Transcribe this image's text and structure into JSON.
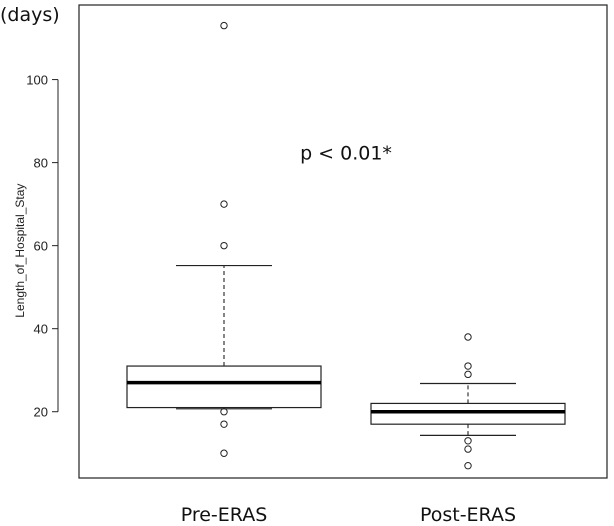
{
  "chart_data": {
    "type": "boxplot",
    "unit_label": "(days)",
    "ylabel": "Length_of_Hospital_Stay",
    "xlabel": "",
    "ylim": [
      5,
      117
    ],
    "yticks": [
      20,
      40,
      60,
      80,
      100
    ],
    "ytick_labels": [
      "20",
      "40",
      "60",
      "80",
      "100"
    ],
    "grid": false,
    "annotation": "p < 0.01*",
    "annotation_x": 1.5,
    "annotation_y": 80,
    "categories": [
      "Pre-ERAS",
      "Post-ERAS"
    ],
    "boxes": [
      {
        "category": "Pre-ERAS",
        "whisker_low": 20.7,
        "q1": 21,
        "median": 27,
        "q3": 31,
        "whisker_high": 55.2,
        "outliers": [
          113,
          70,
          60,
          20,
          17,
          10
        ]
      },
      {
        "category": "Post-ERAS",
        "whisker_low": 14.3,
        "q1": 17,
        "median": 20,
        "q3": 22,
        "whisker_high": 26.8,
        "outliers": [
          38,
          31,
          29,
          13,
          11,
          7
        ]
      }
    ]
  }
}
